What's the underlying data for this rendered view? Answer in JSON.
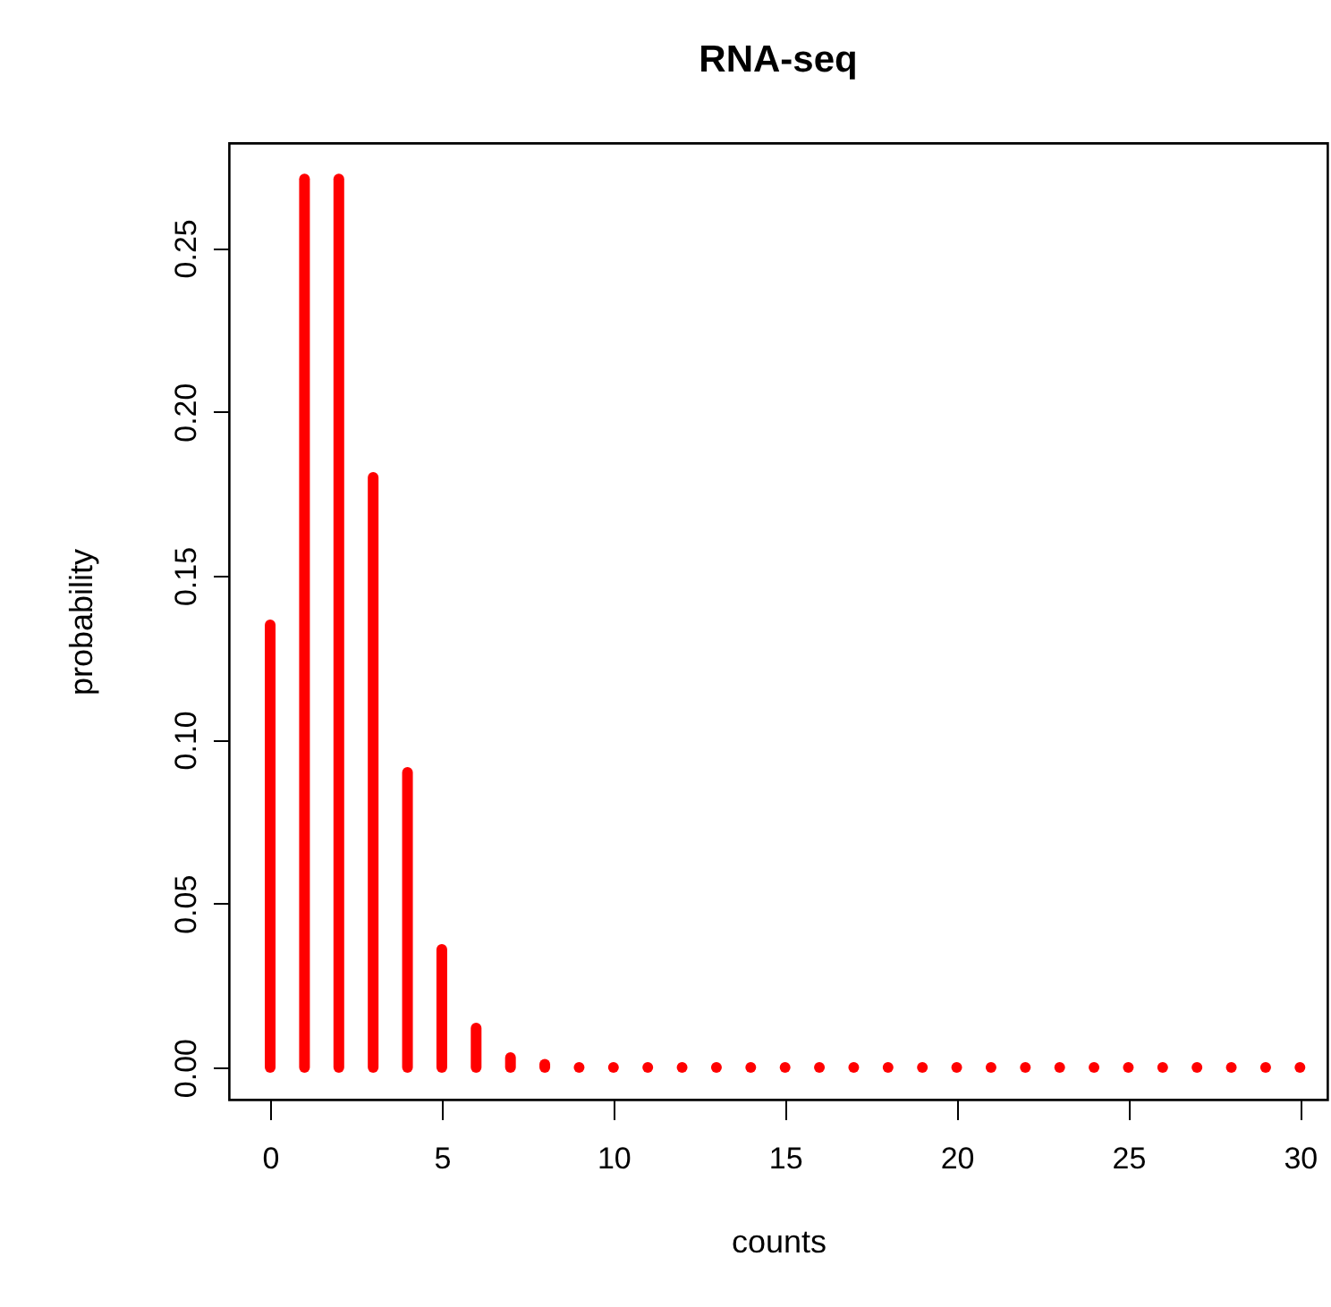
{
  "chart_data": {
    "type": "bar",
    "title": "RNA-seq",
    "xlabel": "counts",
    "ylabel": "probability",
    "x": [
      0,
      1,
      2,
      3,
      4,
      5,
      6,
      7,
      8,
      9,
      10,
      11,
      12,
      13,
      14,
      15,
      16,
      17,
      18,
      19,
      20,
      21,
      22,
      23,
      24,
      25,
      26,
      27,
      28,
      29,
      30
    ],
    "values": [
      0.135,
      0.271,
      0.271,
      0.18,
      0.09,
      0.036,
      0.012,
      0.003,
      0.001,
      0,
      0,
      0,
      0,
      0,
      0,
      0,
      0,
      0,
      0,
      0,
      0,
      0,
      0,
      0,
      0,
      0,
      0,
      0,
      0,
      0,
      0
    ],
    "color": "#ff0000",
    "xlim": [
      -1.2,
      30.8
    ],
    "xticks": [
      0,
      5,
      10,
      15,
      20,
      25,
      30
    ],
    "ylim": [
      -0.0098,
      0.282
    ],
    "yticks": [
      {
        "value": 0,
        "label": "0.00"
      },
      {
        "value": 0.05,
        "label": "0.05"
      },
      {
        "value": 0.1,
        "label": "0.10"
      },
      {
        "value": 0.15,
        "label": "0.15"
      },
      {
        "value": 0.2,
        "label": "0.20"
      },
      {
        "value": 0.25,
        "label": "0.25"
      }
    ],
    "grid": false
  }
}
